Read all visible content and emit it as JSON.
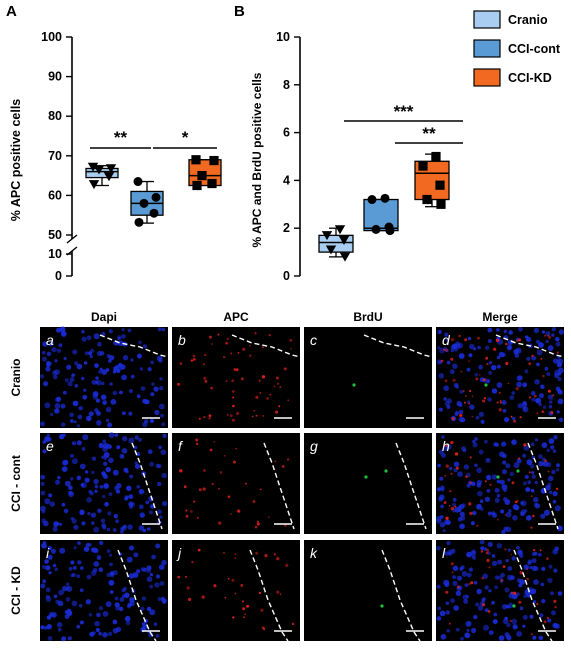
{
  "panel_labels": {
    "a": "A",
    "b": "B"
  },
  "colors": {
    "cranio": "#a9cdf0",
    "cci_cont": "#5b9bd5",
    "cci_kd": "#f26a21",
    "outline": "#000000",
    "micro_bg": "#000000",
    "dapi": "#1a2cd8",
    "apc": "#e02020",
    "brdu": "#22c040",
    "tissue_line": "#ffffff",
    "scale_bar": "#ffffff"
  },
  "legend": [
    {
      "key": "cranio",
      "label": "Cranio"
    },
    {
      "key": "cci_cont",
      "label": "CCI-cont"
    },
    {
      "key": "cci_kd",
      "label": "CCI-KD"
    }
  ],
  "chart_data": [
    {
      "type": "box",
      "ylabel": "% APC positive cells",
      "yticks": [
        "0",
        "10",
        "50",
        "60",
        "70",
        "80",
        "90",
        "100"
      ],
      "axis_break": "between 10 and 50",
      "ylim": [
        0,
        100
      ],
      "series": [
        {
          "name": "Cranio",
          "marker": "triangle-down",
          "box": {
            "min": 62.5,
            "q1": 64.5,
            "median": 66,
            "q3": 66.8,
            "max": 67.5
          },
          "points": [
            67.2,
            66.8,
            66.5,
            64.8,
            62.8
          ]
        },
        {
          "name": "CCI-cont",
          "marker": "circle",
          "box": {
            "min": 53,
            "q1": 55,
            "median": 58,
            "q3": 61,
            "max": 63.5
          },
          "points": [
            63.5,
            59.5,
            58,
            55.5,
            53.2
          ]
        },
        {
          "name": "CCI-KD",
          "marker": "square",
          "box": {
            "min": 62.5,
            "q1": 62.5,
            "median": 65,
            "q3": 69,
            "max": 69
          },
          "points": [
            69,
            68.8,
            65,
            63,
            62.5
          ]
        }
      ],
      "significance": [
        {
          "between": [
            "Cranio",
            "CCI-cont"
          ],
          "label": "**"
        },
        {
          "between": [
            "CCI-cont",
            "CCI-KD"
          ],
          "label": "*"
        }
      ]
    },
    {
      "type": "box",
      "ylabel": "% APC and BrdU positive cells",
      "yticks": [
        "0",
        "2",
        "4",
        "6",
        "8",
        "10"
      ],
      "ylim": [
        0,
        10
      ],
      "series": [
        {
          "name": "Cranio",
          "marker": "triangle-down",
          "box": {
            "min": 0.8,
            "q1": 1.0,
            "median": 1.4,
            "q3": 1.7,
            "max": 2.0
          },
          "points": [
            1.95,
            1.7,
            1.5,
            1.1,
            0.8
          ]
        },
        {
          "name": "CCI-cont",
          "marker": "circle",
          "box": {
            "min": 1.9,
            "q1": 1.9,
            "median": 2.0,
            "q3": 3.2,
            "max": 3.2
          },
          "points": [
            3.25,
            3.2,
            2.05,
            1.95,
            1.9
          ]
        },
        {
          "name": "CCI-KD",
          "marker": "square",
          "box": {
            "min": 2.9,
            "q1": 3.2,
            "median": 4.3,
            "q3": 4.8,
            "max": 5.1
          },
          "points": [
            5.0,
            4.6,
            3.8,
            3.2,
            3.0
          ]
        }
      ],
      "significance": [
        {
          "between": [
            "Cranio",
            "CCI-KD"
          ],
          "label": "***"
        },
        {
          "between": [
            "CCI-cont",
            "CCI-KD"
          ],
          "label": "**"
        }
      ]
    }
  ],
  "micrographs": {
    "columns": [
      "Dapi",
      "APC",
      "BrdU",
      "Merge"
    ],
    "rows": [
      "Cranio",
      "CCI - cont",
      "CCI - KD"
    ],
    "panels": [
      [
        "a",
        "b",
        "c",
        "d"
      ],
      [
        "e",
        "f",
        "g",
        "h"
      ],
      [
        "i",
        "j",
        "k",
        "l"
      ]
    ]
  }
}
